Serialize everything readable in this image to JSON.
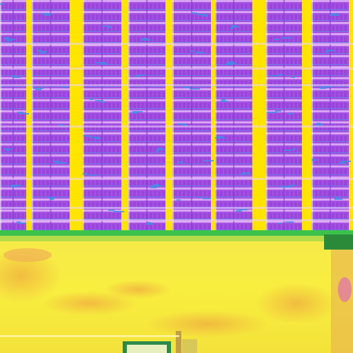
{
  "scene": {
    "description_tag": "false-color-aerial-solar-array",
    "palette": {
      "panel_purple": "#a24fe0",
      "panel_light": "#d9a6f5",
      "cell_blue": "#3f8fe8",
      "gap_yellow": "#ffe400",
      "ground_yellow": "#f7ee3c",
      "ground_orange": "#f0c640",
      "green_edge": "#3cc24a",
      "dark_green": "#2a7a3a"
    },
    "panel_columns": 8
  }
}
